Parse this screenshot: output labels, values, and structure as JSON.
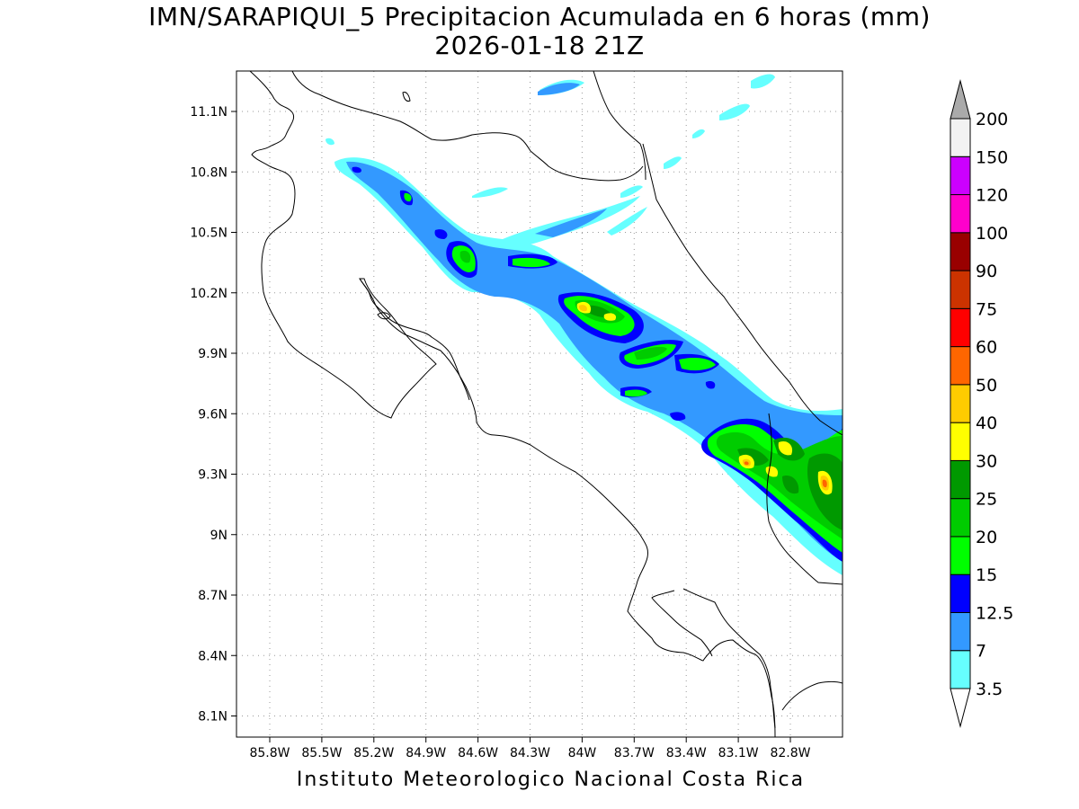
{
  "title": {
    "line1": "IMN/SARAPIQUI_5 Precipitacion Acumulada en 6 horas (mm)",
    "line2": "2026-01-18 21Z"
  },
  "footer": "Instituto Meteorologico Nacional Costa Rica",
  "map": {
    "lat_ticks": [
      "11.1N",
      "10.8N",
      "10.5N",
      "10.2N",
      "9.9N",
      "9.6N",
      "9.3N",
      "9N",
      "8.7N",
      "8.4N",
      "8.1N"
    ],
    "lon_ticks": [
      "85.8W",
      "85.5W",
      "85.2W",
      "84.9W",
      "84.6W",
      "84.3W",
      "84W",
      "83.7W",
      "83.4W",
      "83.1W",
      "82.8W"
    ],
    "grid": "dotted"
  },
  "legend": {
    "labels": [
      "3.5",
      "7",
      "12.5",
      "15",
      "20",
      "25",
      "30",
      "40",
      "50",
      "60",
      "75",
      "90",
      "100",
      "120",
      "150",
      "200"
    ],
    "colors": [
      "#66ffff",
      "#3399ff",
      "#0000ff",
      "#00ff00",
      "#00cc00",
      "#009900",
      "#ffff00",
      "#ffcc00",
      "#ff6600",
      "#ff0000",
      "#cc3300",
      "#990000",
      "#ff00cc",
      "#cc00ff",
      "#9933cc",
      "#f2f2f2",
      "#aaaaaa"
    ]
  }
}
